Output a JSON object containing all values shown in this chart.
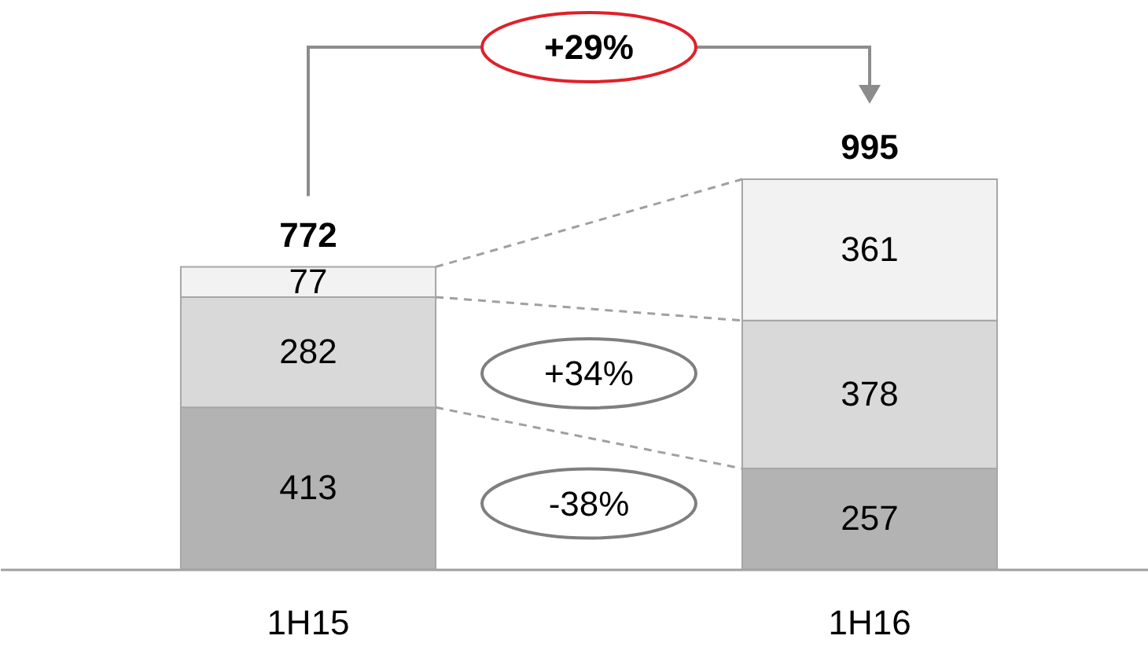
{
  "chart_data": {
    "type": "bar",
    "stacked": true,
    "categories": [
      "1H15",
      "1H16"
    ],
    "series": [
      {
        "color": "#b3b3b3",
        "values": [
          413,
          257
        ]
      },
      {
        "color": "#d9d9d9",
        "values": [
          282,
          378
        ]
      },
      {
        "color": "#f2f2f2",
        "values": [
          77,
          361
        ]
      }
    ],
    "data_labels": true,
    "totals": [
      "772",
      "995"
    ],
    "annotations": [
      "+29%",
      "+34%",
      "-38%"
    ]
  }
}
